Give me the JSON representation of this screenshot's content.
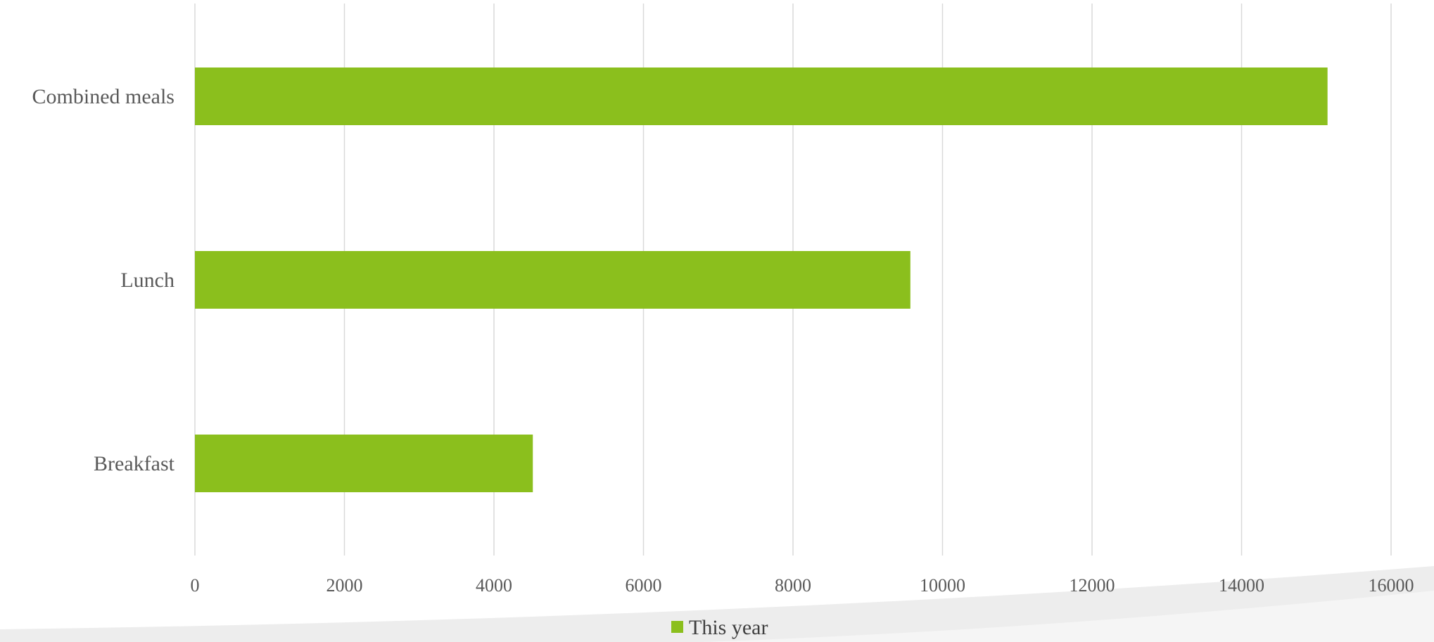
{
  "chart_data": {
    "type": "bar",
    "orientation": "horizontal",
    "categories": [
      "Combined meals",
      "Lunch",
      "Breakfast"
    ],
    "series": [
      {
        "name": "This year",
        "values": [
          15150,
          9570,
          4520
        ],
        "color": "#8bbf1d"
      }
    ],
    "xlim": [
      0,
      16000
    ],
    "x_ticks": [
      "0",
      "2000",
      "4000",
      "6000",
      "8000",
      "10000",
      "12000",
      "14000",
      "16000"
    ],
    "grid": true,
    "gridline_color": "#d9d9d9",
    "legend_position": "bottom"
  }
}
